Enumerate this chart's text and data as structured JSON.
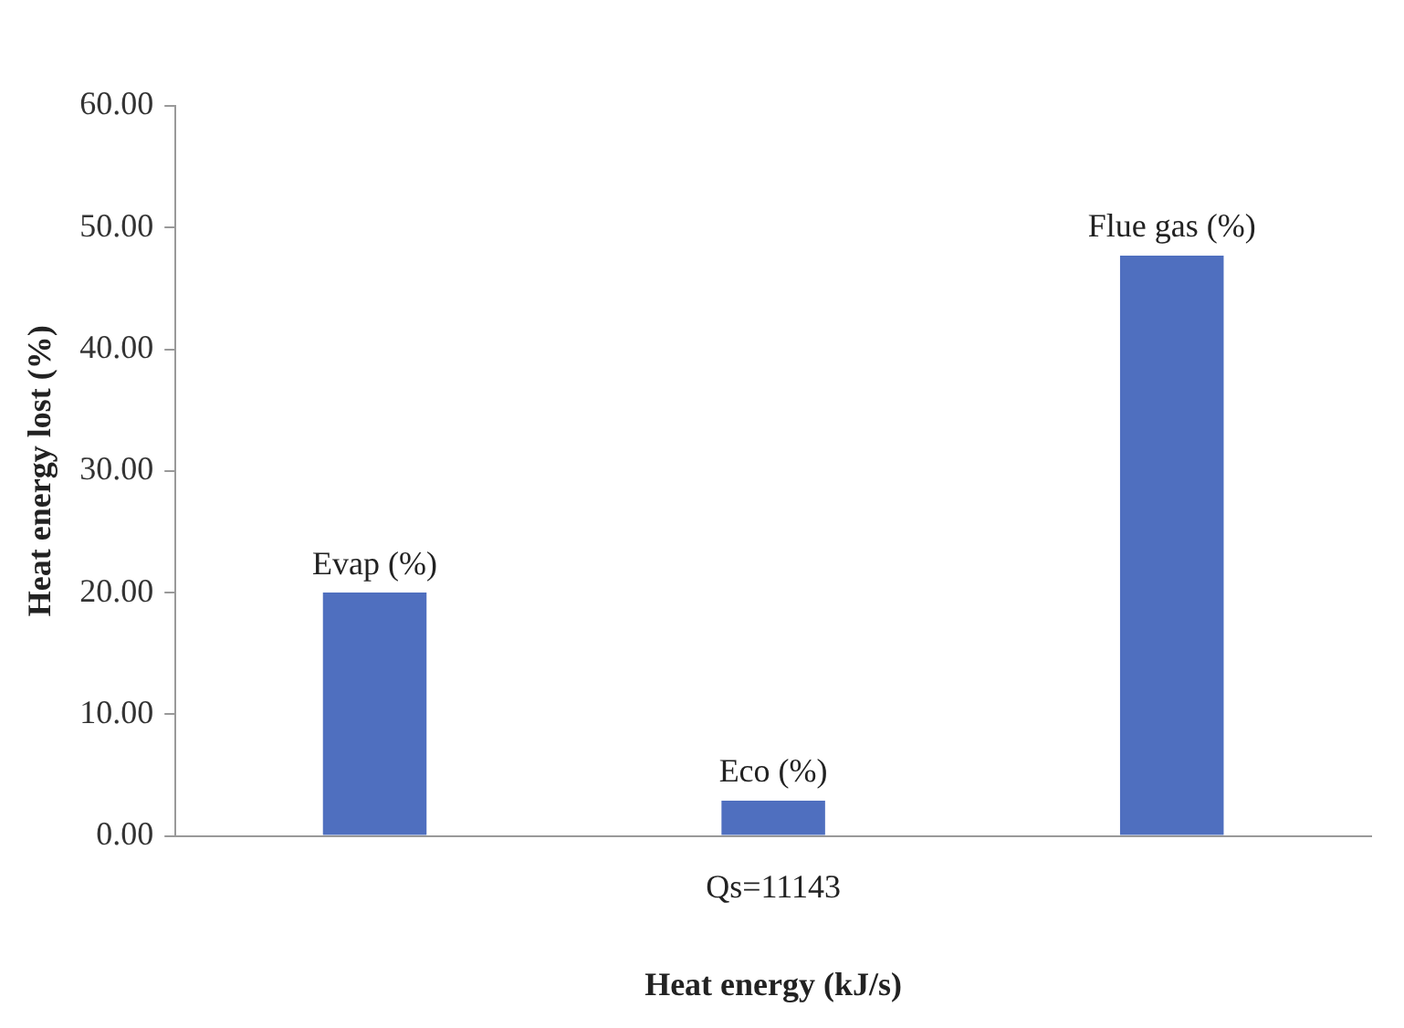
{
  "chart_data": {
    "type": "bar",
    "xlabel": "Heat energy (kJ/s)",
    "ylabel": "Heat energy lost (%)",
    "categories": [
      "Qs=11143"
    ],
    "series": [
      {
        "name": "Evap (%)",
        "color": "#4f6fbf",
        "values": [
          20.0
        ]
      },
      {
        "name": "Eco (%)",
        "color": "#4f6fbf",
        "values": [
          2.9
        ]
      },
      {
        "name": "Flue gas (%)",
        "color": "#4f6fbf",
        "values": [
          47.7
        ]
      }
    ],
    "ylim": [
      0,
      60
    ],
    "yticks": [
      {
        "value": 0,
        "label": "0.00"
      },
      {
        "value": 10,
        "label": "10.00"
      },
      {
        "value": 20,
        "label": "20.00"
      },
      {
        "value": 30,
        "label": "30.00"
      },
      {
        "value": 40,
        "label": "40.00"
      },
      {
        "value": 50,
        "label": "50.00"
      },
      {
        "value": 60,
        "label": "60.00"
      }
    ],
    "grid": false,
    "legend": false
  }
}
